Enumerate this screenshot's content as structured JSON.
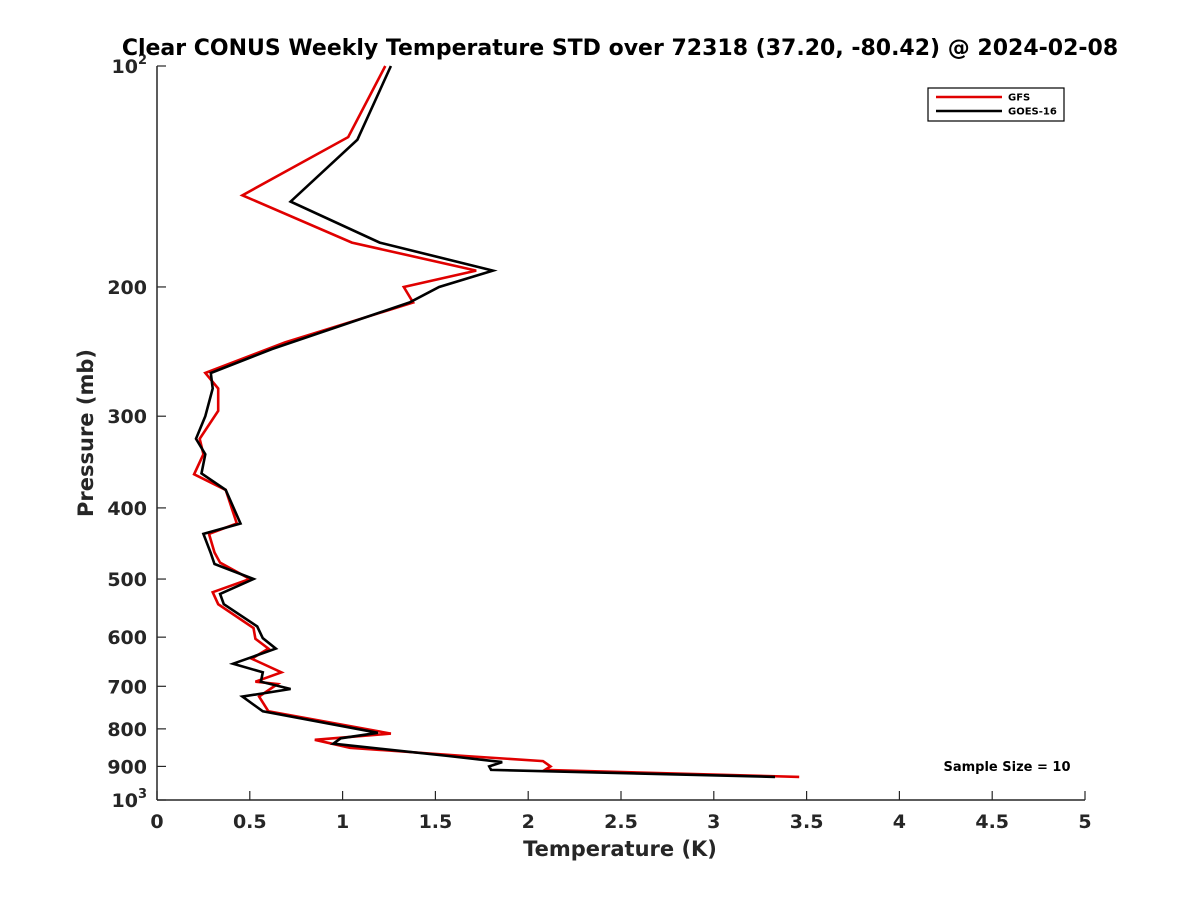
{
  "chart_data": {
    "type": "line",
    "title": "Clear CONUS Weekly Temperature STD over 72318 (37.20, -80.42) @ 2024-02-08",
    "xlabel": "Temperature (K)",
    "ylabel": "Pressure (mb)",
    "xlim": [
      0,
      5
    ],
    "ylim": [
      100,
      1000
    ],
    "y_scale": "log",
    "y_reversed": true,
    "grid": false,
    "legend_position": "top-right",
    "x_ticks": [
      0,
      0.5,
      1,
      1.5,
      2,
      2.5,
      3,
      3.5,
      4,
      4.5,
      5
    ],
    "x_tick_labels": [
      "0",
      "0.5",
      "1",
      "1.5",
      "2",
      "2.5",
      "3",
      "3.5",
      "4",
      "4.5",
      "5"
    ],
    "y_ticks": [
      100,
      200,
      300,
      400,
      500,
      600,
      700,
      800,
      900,
      1000
    ],
    "y_tick_labels": [
      {
        "base": "10",
        "exp": "2"
      },
      {
        "base": "200",
        "exp": ""
      },
      {
        "base": "300",
        "exp": ""
      },
      {
        "base": "400",
        "exp": ""
      },
      {
        "base": "500",
        "exp": ""
      },
      {
        "base": "600",
        "exp": ""
      },
      {
        "base": "700",
        "exp": ""
      },
      {
        "base": "800",
        "exp": ""
      },
      {
        "base": "900",
        "exp": ""
      },
      {
        "base": "10",
        "exp": "3"
      }
    ],
    "annotation": "Sample Size = 10",
    "series": [
      {
        "name": "GFS",
        "color": "#e00000",
        "points": [
          [
            1.23,
            100
          ],
          [
            1.03,
            125
          ],
          [
            0.46,
            150
          ],
          [
            1.05,
            174
          ],
          [
            1.72,
            190
          ],
          [
            1.33,
            200
          ],
          [
            1.38,
            210
          ],
          [
            0.69,
            238
          ],
          [
            0.26,
            262
          ],
          [
            0.33,
            275
          ],
          [
            0.33,
            295
          ],
          [
            0.23,
            322
          ],
          [
            0.25,
            338
          ],
          [
            0.2,
            360
          ],
          [
            0.37,
            378
          ],
          [
            0.43,
            420
          ],
          [
            0.28,
            434
          ],
          [
            0.31,
            460
          ],
          [
            0.34,
            475
          ],
          [
            0.5,
            500
          ],
          [
            0.3,
            521
          ],
          [
            0.33,
            541
          ],
          [
            0.52,
            583
          ],
          [
            0.53,
            603
          ],
          [
            0.6,
            622
          ],
          [
            0.51,
            642
          ],
          [
            0.67,
            670
          ],
          [
            0.53,
            690
          ],
          [
            0.65,
            695
          ],
          [
            0.55,
            723
          ],
          [
            0.6,
            757
          ],
          [
            1.26,
            812
          ],
          [
            0.85,
            828
          ],
          [
            1.04,
            849
          ],
          [
            1.66,
            871
          ],
          [
            2.08,
            885
          ],
          [
            2.12,
            900
          ],
          [
            2.09,
            910
          ],
          [
            3.46,
            930
          ]
        ]
      },
      {
        "name": "GOES-16",
        "color": "#000000",
        "points": [
          [
            1.26,
            100
          ],
          [
            1.08,
            126
          ],
          [
            0.72,
            153
          ],
          [
            1.2,
            174
          ],
          [
            1.81,
            190
          ],
          [
            1.52,
            200
          ],
          [
            1.36,
            210
          ],
          [
            0.62,
            243
          ],
          [
            0.29,
            262
          ],
          [
            0.3,
            275
          ],
          [
            0.26,
            300
          ],
          [
            0.21,
            322
          ],
          [
            0.26,
            338
          ],
          [
            0.24,
            359
          ],
          [
            0.37,
            378
          ],
          [
            0.45,
            420
          ],
          [
            0.25,
            434
          ],
          [
            0.29,
            461
          ],
          [
            0.31,
            477
          ],
          [
            0.52,
            500
          ],
          [
            0.34,
            524
          ],
          [
            0.36,
            541
          ],
          [
            0.54,
            580
          ],
          [
            0.57,
            602
          ],
          [
            0.64,
            622
          ],
          [
            0.41,
            652
          ],
          [
            0.57,
            670
          ],
          [
            0.56,
            690
          ],
          [
            0.72,
            706
          ],
          [
            0.46,
            723
          ],
          [
            0.57,
            757
          ],
          [
            1.19,
            810
          ],
          [
            0.99,
            824
          ],
          [
            0.95,
            838
          ],
          [
            1.57,
            871
          ],
          [
            1.86,
            888
          ],
          [
            1.79,
            900
          ],
          [
            1.8,
            910
          ],
          [
            3.33,
            930
          ]
        ]
      }
    ]
  }
}
